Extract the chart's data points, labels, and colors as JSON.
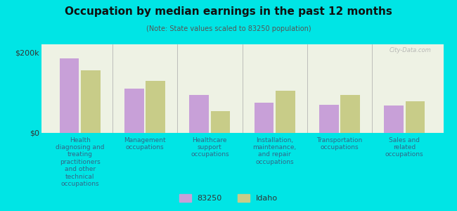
{
  "title": "Occupation by median earnings in the past 12 months",
  "subtitle": "(Note: State values scaled to 83250 population)",
  "categories": [
    "Health\ndiagnosing and\ntreating\npractitioners\nand other\ntechnical\noccupations",
    "Management\noccupations",
    "Healthcare\nsupport\noccupations",
    "Installation,\nmaintenance,\nand repair\noccupations",
    "Transportation\noccupations",
    "Sales and\nrelated\noccupations"
  ],
  "values_83250": [
    185000,
    110000,
    95000,
    75000,
    70000,
    68000
  ],
  "values_idaho": [
    155000,
    130000,
    55000,
    105000,
    95000,
    78000
  ],
  "color_83250": "#c8a0d8",
  "color_idaho": "#c8cc88",
  "ylim": [
    0,
    220000
  ],
  "ytick_labels": [
    "$0",
    "$200k"
  ],
  "background_color": "#00e5e5",
  "plot_bg_color": "#eef2e4",
  "legend_label_83250": "83250",
  "legend_label_idaho": "Idaho",
  "watermark": "City-Data.com"
}
